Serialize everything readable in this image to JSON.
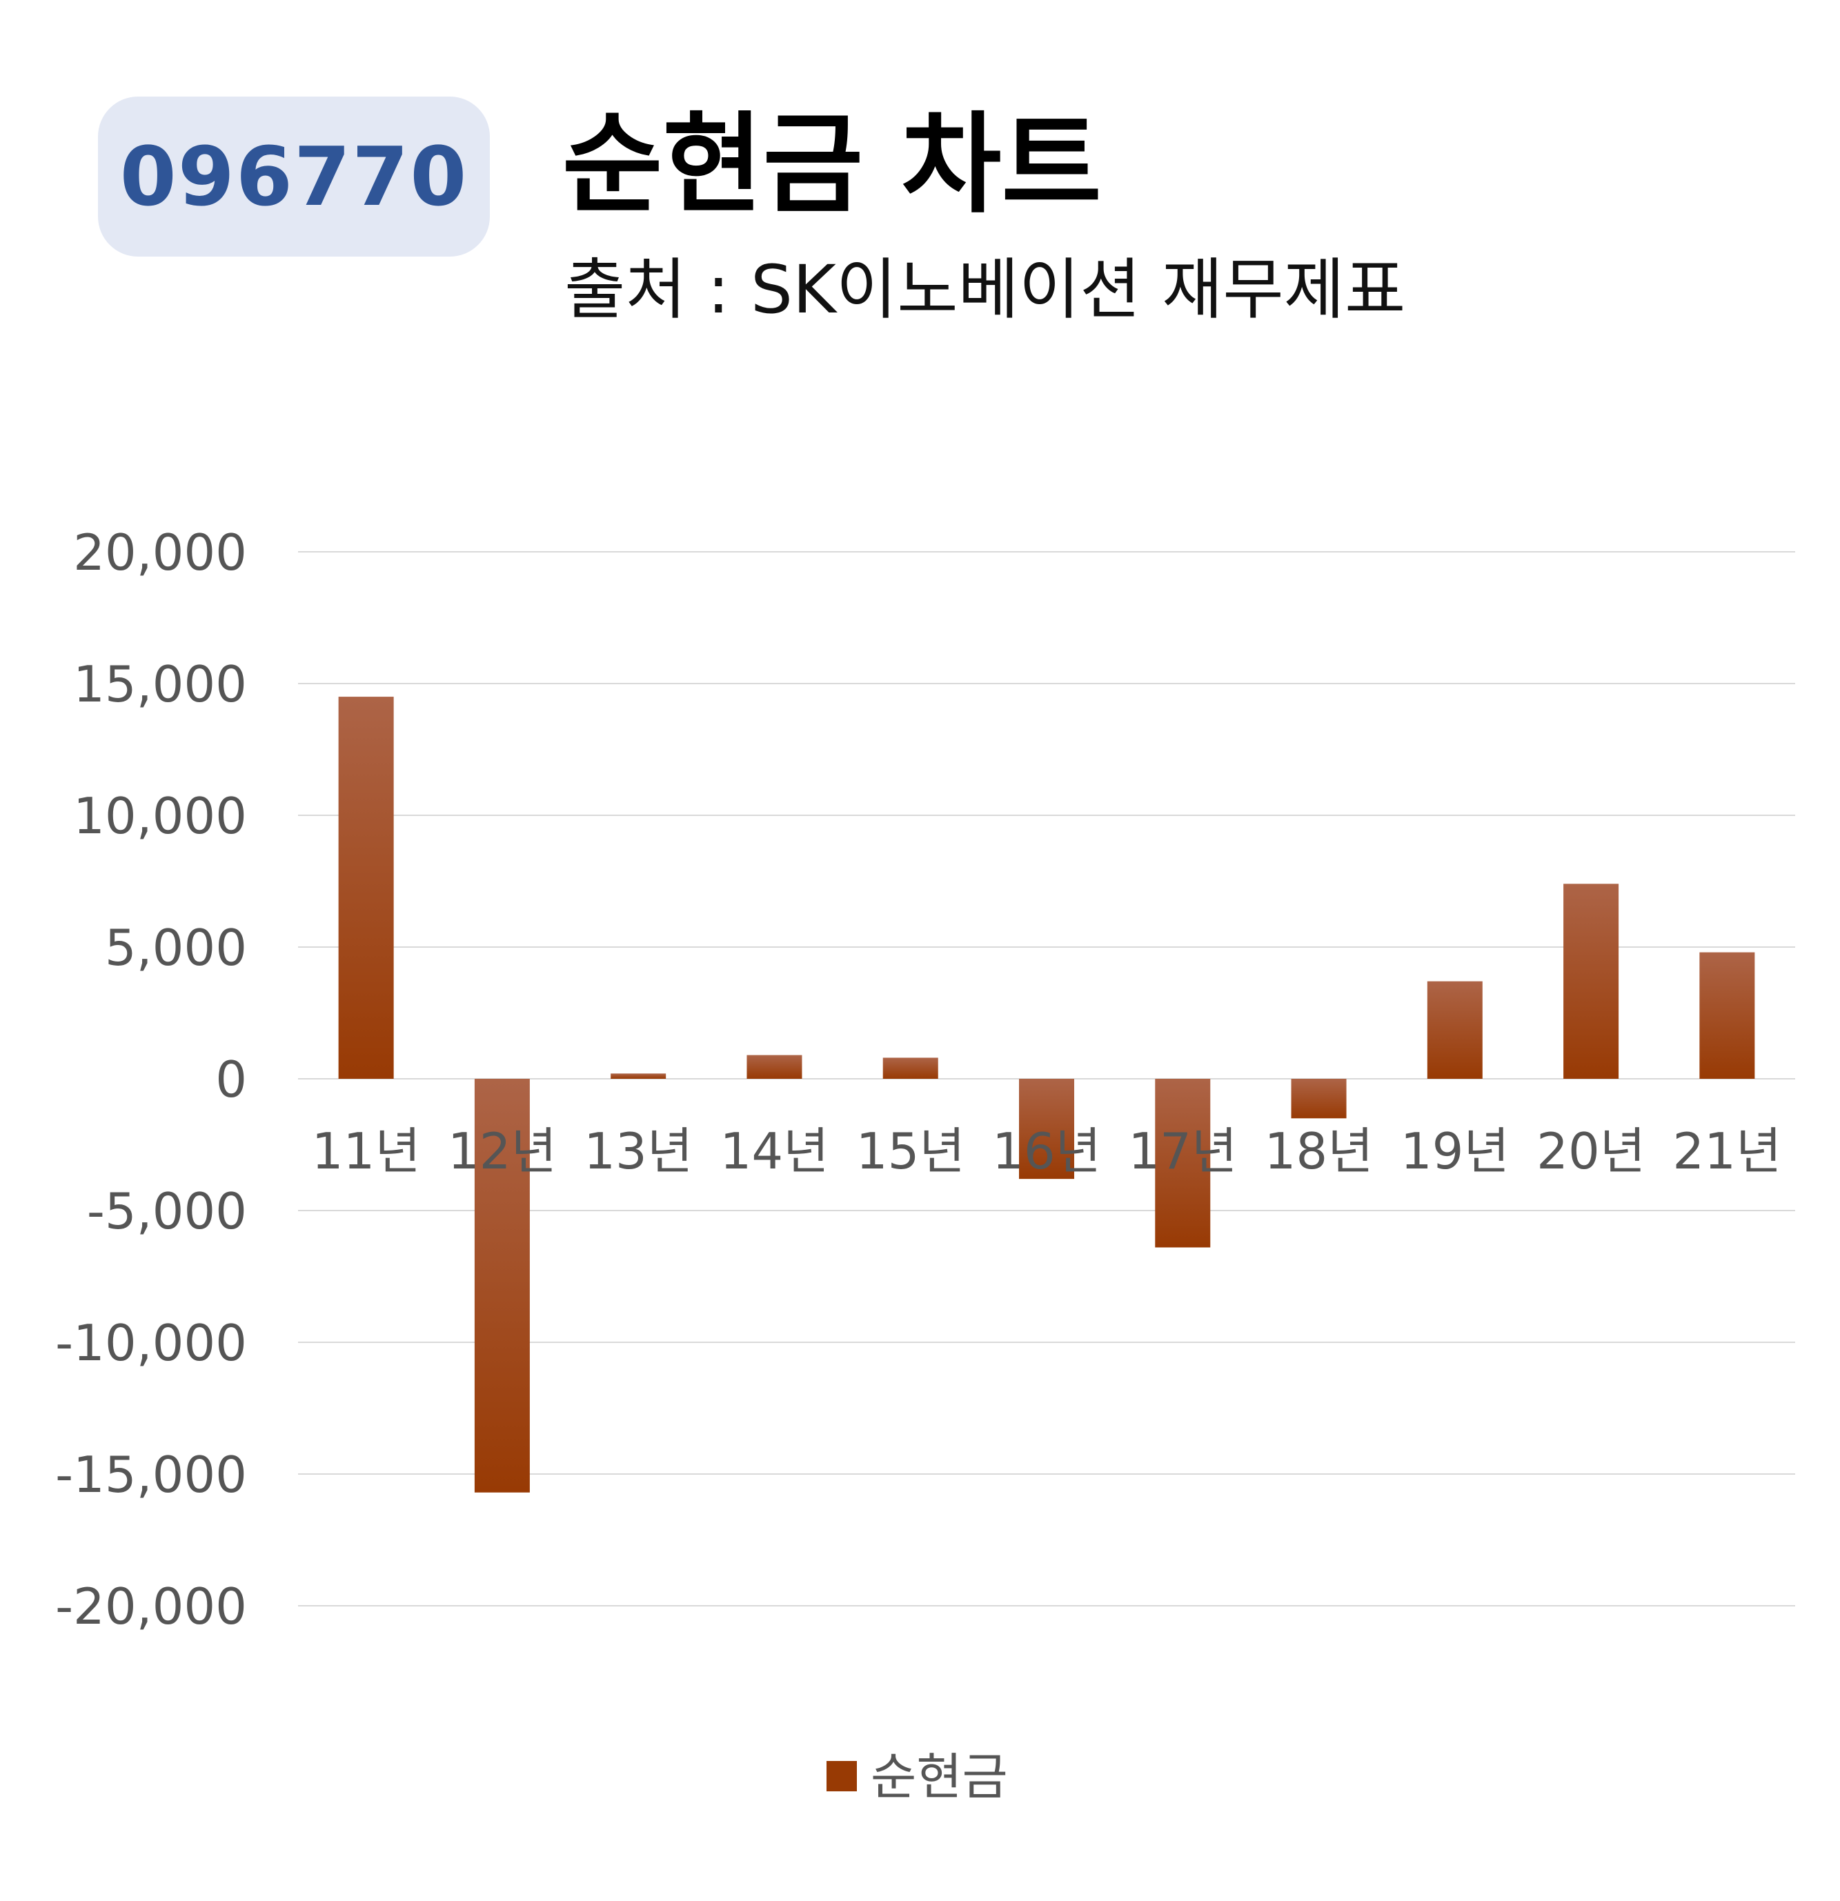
{
  "header": {
    "code": "096770",
    "title": "순현금 차트",
    "subtitle": "출처 : SK이노베이션 재무제표"
  },
  "colors": {
    "badge_bg": "#e3e8f4",
    "badge_text": "#2f5597",
    "bar_top": "#ad6447",
    "bar_bottom": "#983a04",
    "gridline": "#d9d9d9",
    "tick_text": "#555555"
  },
  "chart_data": {
    "type": "bar",
    "categories": [
      "11년",
      "12년",
      "13년",
      "14년",
      "15년",
      "16년",
      "17년",
      "18년",
      "19년",
      "20년",
      "21년"
    ],
    "series": [
      {
        "name": "순현금",
        "values": [
          14500,
          -15700,
          200,
          900,
          800,
          -3800,
          -6400,
          -1500,
          3700,
          7400,
          4800
        ]
      }
    ],
    "ylim": [
      -20000,
      20000
    ],
    "yticks": [
      20000,
      15000,
      10000,
      5000,
      0,
      -5000,
      -10000,
      -15000,
      -20000
    ],
    "ytick_labels": [
      "20,000",
      "15,000",
      "10,000",
      "5,000",
      "0",
      "-5,000",
      "-10,000",
      "-15,000",
      "-20,000"
    ],
    "grid": true,
    "legend": "bottom"
  }
}
